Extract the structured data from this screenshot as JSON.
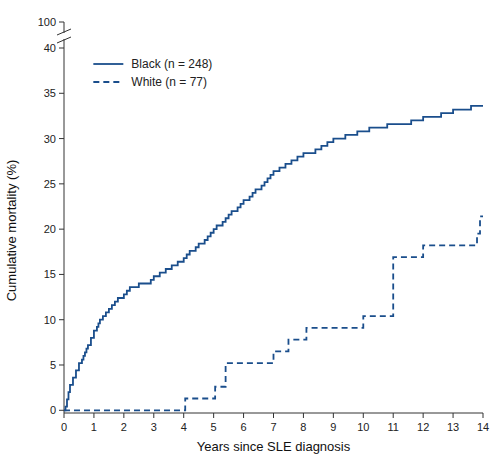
{
  "chart_data": {
    "type": "step",
    "xlabel": "Years since SLE diagnosis",
    "ylabel": "Cumulative mortality (%)",
    "annotation": "100",
    "series": [
      {
        "name": "Black (n = 248)",
        "color": "#1a4e8c",
        "line_style": "solid",
        "x": [
          0,
          0.05,
          0.1,
          0.15,
          0.2,
          0.3,
          0.4,
          0.5,
          0.6,
          0.65,
          0.7,
          0.75,
          0.8,
          0.9,
          1.0,
          1.1,
          1.15,
          1.2,
          1.3,
          1.4,
          1.5,
          1.6,
          1.7,
          1.8,
          1.9,
          2.0,
          2.1,
          2.2,
          2.3,
          2.5,
          2.7,
          2.9,
          3.0,
          3.2,
          3.4,
          3.6,
          3.8,
          4.0,
          4.1,
          4.2,
          4.3,
          4.4,
          4.5,
          4.6,
          4.7,
          4.8,
          4.9,
          5.0,
          5.1,
          5.2,
          5.3,
          5.4,
          5.5,
          5.6,
          5.7,
          5.8,
          5.9,
          6.0,
          6.1,
          6.2,
          6.3,
          6.4,
          6.5,
          6.6,
          6.7,
          6.8,
          6.9,
          7.0,
          7.2,
          7.4,
          7.6,
          7.8,
          8.0,
          8.2,
          8.4,
          8.6,
          8.8,
          9.0,
          9.2,
          9.4,
          9.6,
          9.8,
          10.0,
          10.2,
          10.5,
          10.8,
          11.0,
          11.3,
          11.6,
          11.9,
          12.0,
          12.3,
          12.6,
          12.9,
          13.0,
          13.3,
          13.6,
          13.9,
          14.0
        ],
        "values": [
          0,
          0.4,
          1.2,
          2.0,
          2.8,
          3.6,
          4.4,
          5.2,
          5.6,
          6.0,
          6.4,
          6.8,
          7.2,
          8.0,
          8.8,
          9.2,
          9.6,
          10.0,
          10.4,
          10.8,
          11.2,
          11.6,
          12.0,
          12.4,
          12.4,
          12.8,
          13.2,
          13.6,
          13.6,
          14.0,
          14.0,
          14.4,
          14.8,
          15.2,
          15.6,
          16.0,
          16.4,
          16.8,
          17.2,
          17.6,
          17.6,
          18.0,
          18.4,
          18.4,
          18.8,
          19.2,
          19.6,
          20.0,
          20.4,
          20.4,
          20.8,
          21.2,
          21.6,
          22.0,
          22.0,
          22.4,
          22.8,
          23.2,
          23.2,
          23.6,
          24.0,
          24.4,
          24.4,
          24.8,
          25.2,
          25.6,
          26.0,
          26.4,
          26.8,
          27.2,
          27.6,
          28.0,
          28.4,
          28.4,
          28.8,
          29.2,
          29.6,
          30.0,
          30.0,
          30.4,
          30.4,
          30.8,
          30.8,
          31.2,
          31.2,
          31.6,
          31.6,
          31.6,
          32.0,
          32.0,
          32.4,
          32.4,
          32.8,
          32.8,
          33.2,
          33.2,
          33.6,
          33.6,
          33.6
        ]
      },
      {
        "name": "White (n = 77)",
        "color": "#1a4e8c",
        "line_style": "dashed",
        "x": [
          0,
          0.5,
          1.0,
          1.5,
          2.0,
          2.5,
          3.0,
          3.5,
          4.0,
          4.05,
          4.2,
          4.5,
          4.9,
          5.0,
          5.05,
          5.4,
          5.6,
          5.9,
          6.0,
          6.5,
          7.0,
          7.4,
          7.5,
          7.9,
          8.0,
          8.1,
          8.5,
          9.0,
          9.5,
          9.9,
          10.0,
          10.9,
          11.0,
          11.05,
          11.3,
          11.6,
          11.9,
          12.0,
          12.5,
          13.0,
          13.5,
          13.8,
          13.9,
          14.0
        ],
        "values": [
          0,
          0,
          0,
          0,
          0,
          0,
          0,
          0,
          0,
          1.3,
          1.3,
          1.3,
          1.3,
          1.3,
          2.6,
          5.2,
          5.2,
          5.2,
          5.2,
          5.2,
          6.5,
          6.5,
          7.8,
          7.8,
          7.8,
          9.1,
          9.1,
          9.1,
          9.1,
          9.1,
          10.4,
          10.4,
          16.9,
          16.9,
          16.9,
          16.9,
          16.9,
          18.2,
          18.2,
          18.2,
          18.2,
          19.5,
          21.4,
          21.4
        ]
      }
    ],
    "xlim": [
      0,
      14
    ],
    "ylim": [
      -0.3,
      40
    ],
    "xticks": [
      0,
      1,
      2,
      3,
      4,
      5,
      6,
      7,
      8,
      9,
      10,
      11,
      12,
      13,
      14
    ],
    "yticks": [
      0,
      5,
      10,
      15,
      20,
      25,
      30,
      35,
      40
    ],
    "legend": "upper left",
    "grid": false
  }
}
